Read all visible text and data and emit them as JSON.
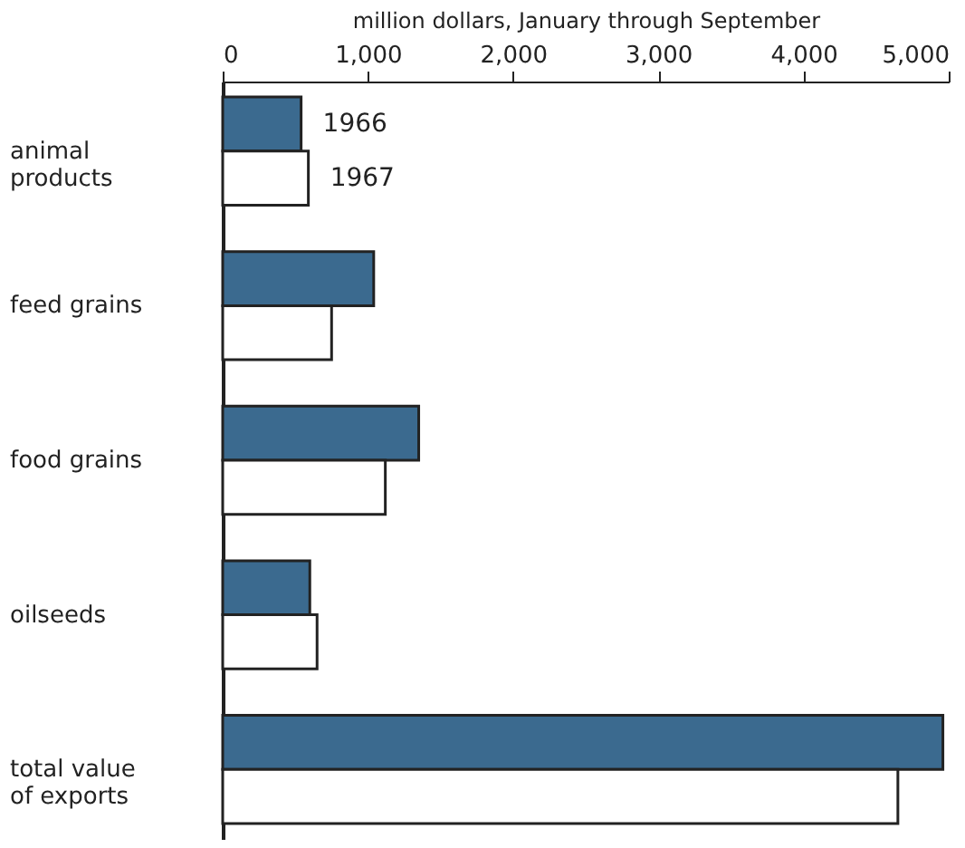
{
  "chart_data": {
    "type": "bar",
    "orientation": "horizontal",
    "xlabel": "million dollars, January through September",
    "categories": [
      "animal products",
      "feed grains",
      "food grains",
      "oilseeds",
      "total value of exports"
    ],
    "series": [
      {
        "name": "1966",
        "color": "#3b6a8f",
        "values": [
          540,
          1040,
          1350,
          600,
          4960
        ]
      },
      {
        "name": "1967",
        "color": "#ffffff",
        "values": [
          590,
          750,
          1120,
          650,
          4650
        ]
      }
    ],
    "xlim": [
      0,
      5000
    ],
    "xticks": [
      0,
      {
        "value": 1000,
        "label": "1,000"
      },
      {
        "value": 2000,
        "label": "2,000"
      },
      {
        "value": 3000,
        "label": "3,000"
      },
      {
        "value": 4000,
        "label": "4,000"
      },
      {
        "value": 5000,
        "label": "5,000"
      }
    ],
    "grid": false,
    "legend": false
  }
}
